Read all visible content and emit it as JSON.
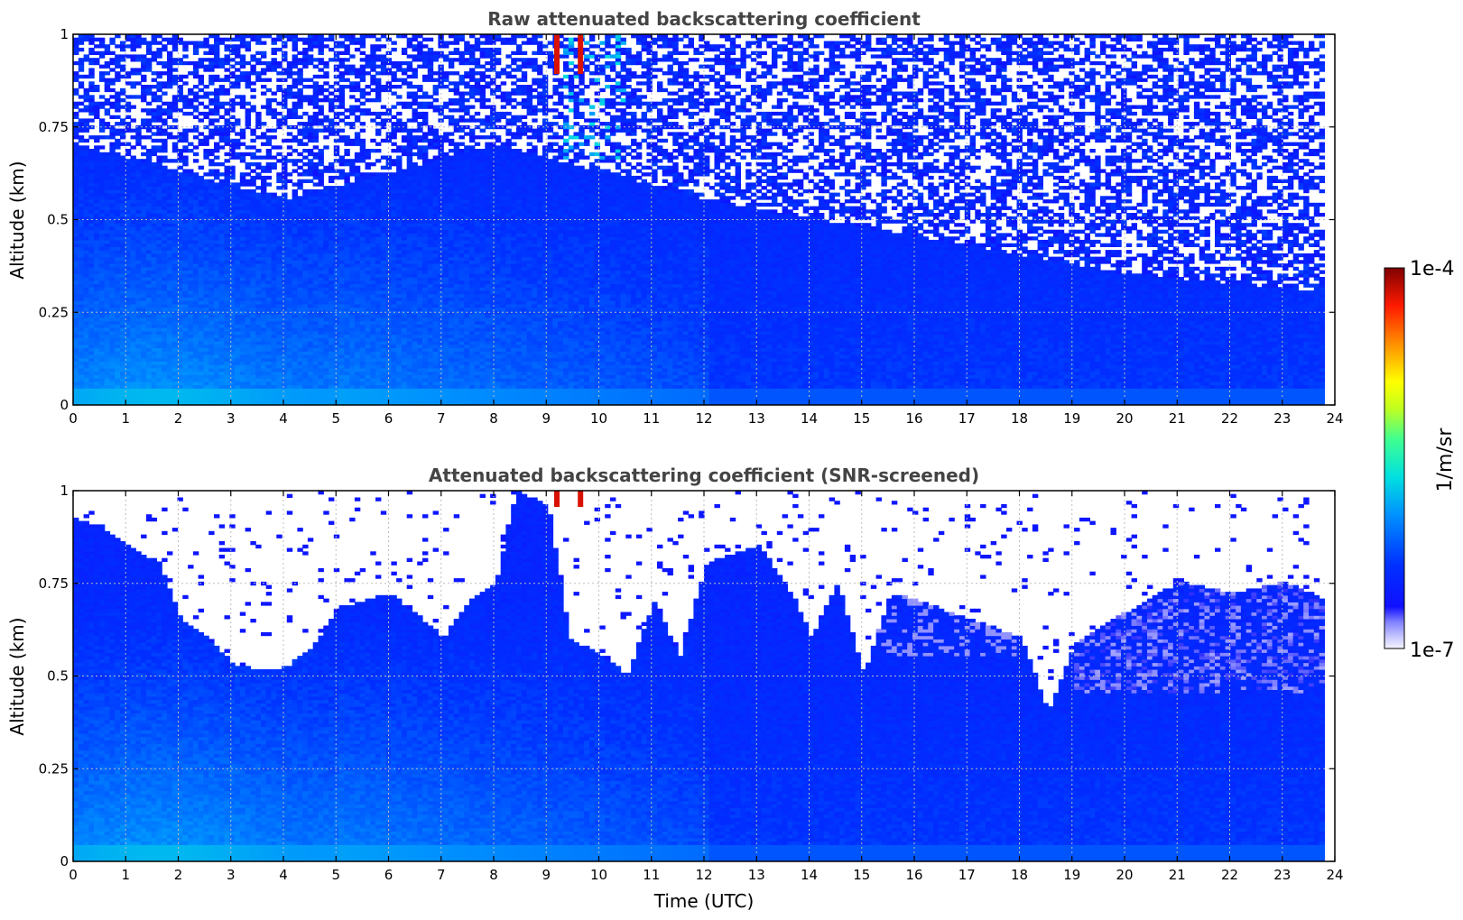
{
  "chart_data": [
    {
      "type": "heatmap",
      "title": "Raw attenuated backscattering coefficient",
      "xlabel": "",
      "ylabel": "Altitude (km)",
      "xlim": [
        0,
        24
      ],
      "ylim": [
        0,
        1
      ],
      "x_ticks": [
        "0",
        "1",
        "2",
        "3",
        "4",
        "5",
        "6",
        "7",
        "8",
        "9",
        "10",
        "11",
        "12",
        "13",
        "14",
        "15",
        "16",
        "17",
        "18",
        "19",
        "20",
        "21",
        "22",
        "23",
        "24"
      ],
      "y_ticks": [
        "0",
        "0.25",
        "0.5",
        "0.75",
        "1"
      ],
      "data_extent_x": [
        0,
        23.8
      ],
      "grid": true,
      "colormap": "jet-like (white at low end to dark red at high end)",
      "color_scale": "log",
      "zlim": [
        1e-07,
        0.0001
      ],
      "profile_summary": [
        {
          "time": 0,
          "noise_floor_altitude": 0.7,
          "surface_layer_level": "1e-5.5"
        },
        {
          "time": 4,
          "noise_floor_altitude": 0.55,
          "surface_layer_level": "1e-5.6"
        },
        {
          "time": 8,
          "noise_floor_altitude": 0.7,
          "surface_layer_level": "1e-5.9"
        },
        {
          "time": 12,
          "noise_floor_altitude": 0.55,
          "surface_layer_level": "1e-6.2"
        },
        {
          "time": 16,
          "noise_floor_altitude": 0.45,
          "surface_layer_level": "1e-6.4"
        },
        {
          "time": 20,
          "noise_floor_altitude": 0.35,
          "surface_layer_level": "1e-6.4"
        },
        {
          "time": 23.8,
          "noise_floor_altitude": 0.3,
          "surface_layer_level": "1e-6.4"
        }
      ]
    },
    {
      "type": "heatmap",
      "title": "Attenuated backscattering coefficient (SNR-screened)",
      "xlabel": "Time (UTC)",
      "ylabel": "Altitude (km)",
      "xlim": [
        0,
        24
      ],
      "ylim": [
        0,
        1
      ],
      "x_ticks": [
        "0",
        "1",
        "2",
        "3",
        "4",
        "5",
        "6",
        "7",
        "8",
        "9",
        "10",
        "11",
        "12",
        "13",
        "14",
        "15",
        "16",
        "17",
        "18",
        "19",
        "20",
        "21",
        "22",
        "23",
        "24"
      ],
      "y_ticks": [
        "0",
        "0.25",
        "0.5",
        "0.75",
        "1"
      ],
      "data_extent_x": [
        0,
        23.8
      ],
      "grid": true,
      "colormap": "jet-like (white at low end to dark red at high end)",
      "color_scale": "log",
      "zlim": [
        1e-07,
        0.0001
      ],
      "screened_top_altitude": [
        {
          "time": 0,
          "altitude": 0.92
        },
        {
          "time": 0.5,
          "altitude": 0.9
        },
        {
          "time": 1,
          "altitude": 0.85
        },
        {
          "time": 1.6,
          "altitude": 0.8
        },
        {
          "time": 2,
          "altitude": 0.65
        },
        {
          "time": 2.5,
          "altitude": 0.6
        },
        {
          "time": 3,
          "altitude": 0.53
        },
        {
          "time": 3.5,
          "altitude": 0.51
        },
        {
          "time": 4,
          "altitude": 0.52
        },
        {
          "time": 4.5,
          "altitude": 0.57
        },
        {
          "time": 5,
          "altitude": 0.68
        },
        {
          "time": 6,
          "altitude": 0.72
        },
        {
          "time": 7,
          "altitude": 0.6
        },
        {
          "time": 7.5,
          "altitude": 0.7
        },
        {
          "time": 8,
          "altitude": 0.75
        },
        {
          "time": 8.4,
          "altitude": 1.0
        },
        {
          "time": 9,
          "altitude": 0.95
        },
        {
          "time": 9.4,
          "altitude": 0.6
        },
        {
          "time": 10,
          "altitude": 0.55
        },
        {
          "time": 10.5,
          "altitude": 0.5
        },
        {
          "time": 11,
          "altitude": 0.7
        },
        {
          "time": 11.5,
          "altitude": 0.55
        },
        {
          "time": 12,
          "altitude": 0.8
        },
        {
          "time": 13,
          "altitude": 0.85
        },
        {
          "time": 13.7,
          "altitude": 0.7
        },
        {
          "time": 14,
          "altitude": 0.6
        },
        {
          "time": 14.5,
          "altitude": 0.75
        },
        {
          "time": 15,
          "altitude": 0.5
        },
        {
          "time": 15.5,
          "altitude": 0.72
        },
        {
          "time": 16,
          "altitude": 0.7
        },
        {
          "time": 17,
          "altitude": 0.65
        },
        {
          "time": 18,
          "altitude": 0.6
        },
        {
          "time": 18.5,
          "altitude": 0.4
        },
        {
          "time": 19,
          "altitude": 0.58
        },
        {
          "time": 20,
          "altitude": 0.67
        },
        {
          "time": 21,
          "altitude": 0.75
        },
        {
          "time": 22,
          "altitude": 0.72
        },
        {
          "time": 23,
          "altitude": 0.75
        },
        {
          "time": 23.8,
          "altitude": 0.7
        }
      ]
    }
  ],
  "colorbar": {
    "label": "1/m/sr",
    "max_label": "1e-4",
    "min_label": "1e-7"
  }
}
